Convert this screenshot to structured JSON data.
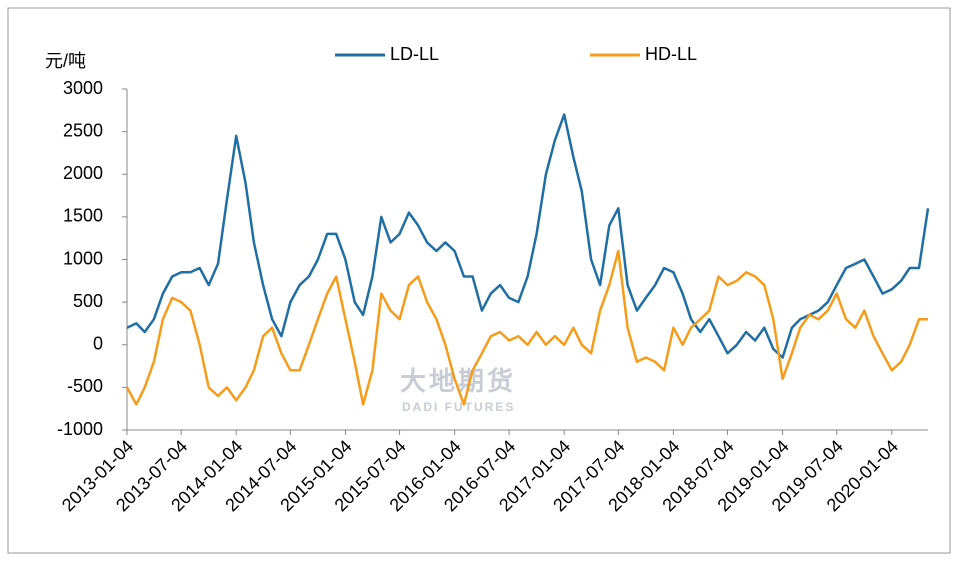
{
  "chart_data": {
    "type": "line",
    "y_label": "元/吨",
    "watermark": [
      "大地期货",
      "DADI FUTURES"
    ],
    "x": [
      "2013-01-04",
      "2013-02-04",
      "2013-03-04",
      "2013-04-04",
      "2013-05-04",
      "2013-06-04",
      "2013-07-04",
      "2013-08-04",
      "2013-09-04",
      "2013-10-04",
      "2013-11-04",
      "2013-12-04",
      "2014-01-04",
      "2014-02-04",
      "2014-03-04",
      "2014-04-04",
      "2014-05-04",
      "2014-06-04",
      "2014-07-04",
      "2014-08-04",
      "2014-09-04",
      "2014-10-04",
      "2014-11-04",
      "2014-12-04",
      "2015-01-04",
      "2015-02-04",
      "2015-03-04",
      "2015-04-04",
      "2015-05-04",
      "2015-06-04",
      "2015-07-04",
      "2015-08-04",
      "2015-09-04",
      "2015-10-04",
      "2015-11-04",
      "2015-12-04",
      "2016-01-04",
      "2016-02-04",
      "2016-03-04",
      "2016-04-04",
      "2016-05-04",
      "2016-06-04",
      "2016-07-04",
      "2016-08-04",
      "2016-09-04",
      "2016-10-04",
      "2016-11-04",
      "2016-12-04",
      "2017-01-04",
      "2017-02-04",
      "2017-03-04",
      "2017-04-04",
      "2017-05-04",
      "2017-06-04",
      "2017-07-04",
      "2017-08-04",
      "2017-09-04",
      "2017-10-04",
      "2017-11-04",
      "2017-12-04",
      "2018-01-04",
      "2018-02-04",
      "2018-03-04",
      "2018-04-04",
      "2018-05-04",
      "2018-06-04",
      "2018-07-04",
      "2018-08-04",
      "2018-09-04",
      "2018-10-04",
      "2018-11-04",
      "2018-12-04",
      "2019-01-04",
      "2019-02-04",
      "2019-03-04",
      "2019-04-04",
      "2019-05-04",
      "2019-06-04",
      "2019-07-04",
      "2019-08-04",
      "2019-09-04",
      "2019-10-04",
      "2019-11-04",
      "2019-12-04",
      "2020-01-04",
      "2020-02-04",
      "2020-03-04",
      "2020-04-04",
      "2020-05-04"
    ],
    "series": [
      {
        "name": "LD-LL",
        "color": "#1f6fa5",
        "values": [
          200,
          250,
          150,
          300,
          600,
          800,
          850,
          850,
          900,
          700,
          950,
          1700,
          2450,
          1900,
          1200,
          700,
          300,
          100,
          500,
          700,
          800,
          1000,
          1300,
          1300,
          1000,
          500,
          350,
          800,
          1500,
          1200,
          1300,
          1550,
          1400,
          1200,
          1100,
          1200,
          1100,
          800,
          800,
          400,
          600,
          700,
          550,
          500,
          800,
          1300,
          2000,
          2400,
          2700,
          2200,
          1800,
          1000,
          700,
          1400,
          1600,
          700,
          400,
          550,
          700,
          900,
          850,
          600,
          300,
          150,
          300,
          100,
          -100,
          0,
          150,
          50,
          200,
          -50,
          -150,
          200,
          300,
          350,
          400,
          500,
          700,
          900,
          950,
          1000,
          800,
          600,
          650,
          750,
          900,
          900,
          1600
        ]
      },
      {
        "name": "HD-LL",
        "color": "#f59c1a",
        "values": [
          -500,
          -700,
          -500,
          -200,
          300,
          550,
          500,
          400,
          0,
          -500,
          -600,
          -500,
          -650,
          -500,
          -300,
          100,
          200,
          -100,
          -300,
          -300,
          0,
          300,
          600,
          800,
          300,
          -200,
          -700,
          -300,
          600,
          400,
          300,
          700,
          800,
          500,
          300,
          0,
          -400,
          -700,
          -300,
          -100,
          100,
          150,
          50,
          100,
          0,
          150,
          0,
          100,
          0,
          200,
          0,
          -100,
          400,
          700,
          1100,
          200,
          -200,
          -150,
          -200,
          -300,
          200,
          0,
          200,
          300,
          400,
          800,
          700,
          750,
          850,
          800,
          700,
          300,
          -400,
          -100,
          200,
          350,
          300,
          400,
          600,
          300,
          200,
          400,
          100,
          -100,
          -300,
          -200,
          0,
          300,
          300
        ]
      }
    ],
    "xlim": [
      "2013-01-04",
      "2020-05-04"
    ],
    "xticks": [
      "2013-01-04",
      "2013-07-04",
      "2014-01-04",
      "2014-07-04",
      "2015-01-04",
      "2015-07-04",
      "2016-01-04",
      "2016-07-04",
      "2017-01-04",
      "2017-07-04",
      "2018-01-04",
      "2018-07-04",
      "2019-01-04",
      "2019-07-04",
      "2020-01-04"
    ],
    "ylim": [
      -1000,
      3000
    ],
    "yticks": [
      -1000,
      -500,
      0,
      500,
      1000,
      1500,
      2000,
      2500,
      3000
    ],
    "grid": false,
    "legend": "top"
  }
}
